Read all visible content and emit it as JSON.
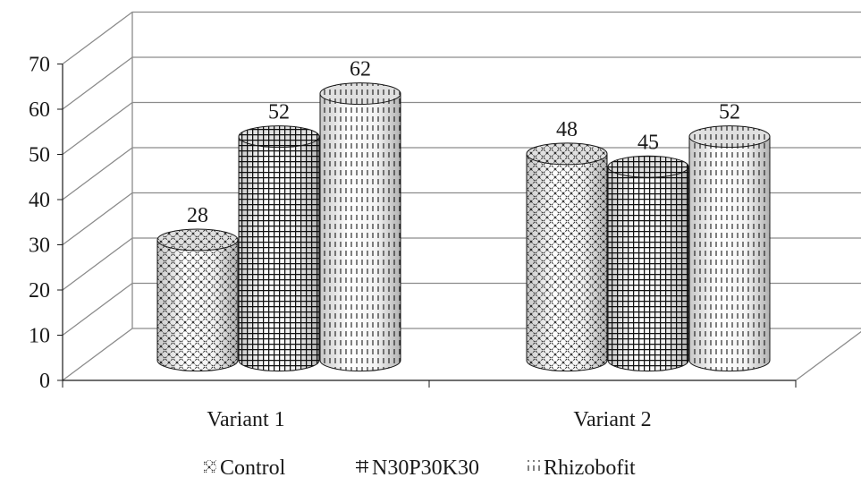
{
  "chart_data": {
    "type": "bar",
    "style": "3d-cylinder",
    "categories": [
      "Variant 1",
      "Variant 2"
    ],
    "series": [
      {
        "name": "Control",
        "values": [
          28,
          48
        ],
        "pattern": "diagonal-cross"
      },
      {
        "name": "N30P30K30",
        "values": [
          52,
          45
        ],
        "pattern": "grid"
      },
      {
        "name": "Rhizobofit",
        "values": [
          62,
          52
        ],
        "pattern": "vertical-dash"
      }
    ],
    "y_ticks": [
      "0",
      "10",
      "20",
      "30",
      "40",
      "50",
      "60",
      "70"
    ],
    "data_labels": [
      [
        "28",
        "48"
      ],
      [
        "52",
        "45"
      ],
      [
        "62",
        "52"
      ]
    ],
    "ylim": [
      0,
      70
    ],
    "grid": true,
    "legend_position": "bottom",
    "colors": {
      "ink": "#1a1a1a",
      "grid": "#8c8c8c",
      "fill": "#ffffff"
    }
  }
}
